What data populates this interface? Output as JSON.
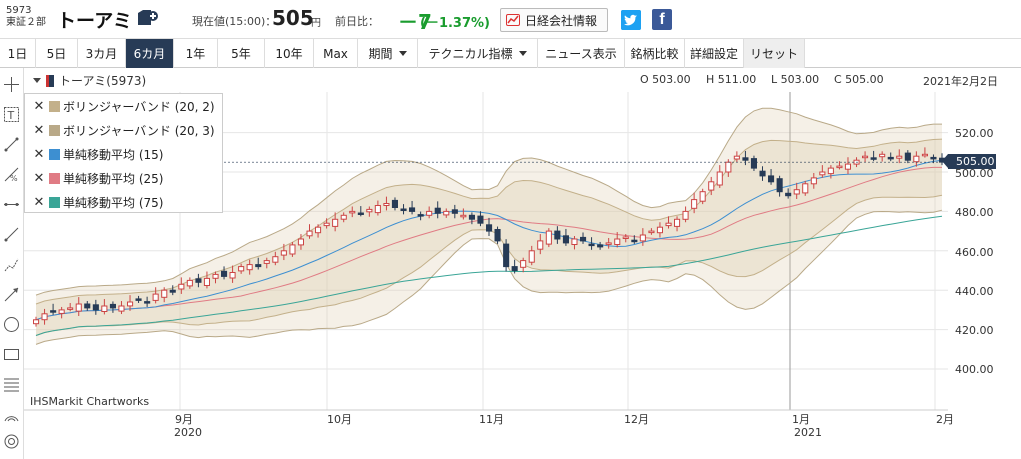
{
  "header": {
    "code": "5973",
    "market": "東証２部",
    "name": "トーアミ",
    "price_label": "現在値(15:00)：",
    "price": "505",
    "price_unit": "円",
    "change_label": "前日比：",
    "change": "－7",
    "change_pct": "(－1.37%)",
    "nikkei_label": "日経会社情報",
    "facebook_glyph": "f"
  },
  "toolbar": {
    "items": [
      {
        "label": "1日"
      },
      {
        "label": "5日"
      },
      {
        "label": "3カ月"
      },
      {
        "label": "6カ月"
      },
      {
        "label": "1年"
      },
      {
        "label": "5年"
      },
      {
        "label": "10年"
      },
      {
        "label": "Max"
      },
      {
        "label": "期間"
      },
      {
        "label": "テクニカル指標"
      },
      {
        "label": "ニュース表示"
      },
      {
        "label": "銘柄比較"
      },
      {
        "label": "詳細設定"
      },
      {
        "label": "リセット"
      }
    ],
    "active": "6カ月"
  },
  "chart_info": {
    "symbol": "トーアミ(5973)",
    "open": "O 503.00",
    "high": "H 511.00",
    "low": "L 503.00",
    "close": "C 505.00",
    "date": "2021年2月2日",
    "last_price_tag": "505.00",
    "watermark": "IHSMarkit Chartworks"
  },
  "legend": [
    {
      "label": "ボリンジャーバンド (20, 2)",
      "color": "#c3b08a"
    },
    {
      "label": "ボリンジャーバンド (20, 3)",
      "color": "#b9a988"
    },
    {
      "label": "単純移動平均 (15)",
      "color": "#3d8fd1"
    },
    {
      "label": "単純移動平均 (25)",
      "color": "#e07b84"
    },
    {
      "label": "単純移動平均 (75)",
      "color": "#3aa597"
    }
  ],
  "chart_data": {
    "type": "candlestick",
    "y_ticks": [
      "520.00",
      "500.00",
      "480.00",
      "460.00",
      "440.00",
      "420.00",
      "400.00"
    ],
    "ylim": [
      380,
      530
    ],
    "x_ticks": [
      {
        "label": "9月",
        "sub": "2020"
      },
      {
        "label": "10月",
        "sub": ""
      },
      {
        "label": "11月",
        "sub": ""
      },
      {
        "label": "12月",
        "sub": ""
      },
      {
        "label": "1月",
        "sub": "2021"
      },
      {
        "label": "2月",
        "sub": ""
      }
    ],
    "up_color": "#cc4444",
    "down_color": "#273b56",
    "close": [
      425,
      428,
      429,
      430,
      431,
      433,
      431,
      430,
      432,
      431,
      432,
      434,
      435,
      434,
      438,
      440,
      439,
      443,
      445,
      444,
      446,
      448,
      447,
      449,
      452,
      453,
      452,
      455,
      457,
      460,
      463,
      466,
      470,
      472,
      474,
      476,
      478,
      480,
      479,
      481,
      483,
      484,
      482,
      481,
      480,
      478,
      480,
      479,
      480,
      479,
      478,
      476,
      474,
      470,
      465,
      452,
      450,
      455,
      460,
      465,
      470,
      466,
      464,
      466,
      465,
      463,
      462,
      464,
      466,
      467,
      465,
      468,
      470,
      472,
      474,
      476,
      480,
      486,
      490,
      495,
      500,
      505,
      508,
      506,
      502,
      498,
      495,
      490,
      488,
      491,
      494,
      497,
      500,
      502,
      503,
      504,
      506,
      508,
      507,
      509,
      507,
      508,
      506,
      508,
      509,
      507,
      505
    ]
  }
}
